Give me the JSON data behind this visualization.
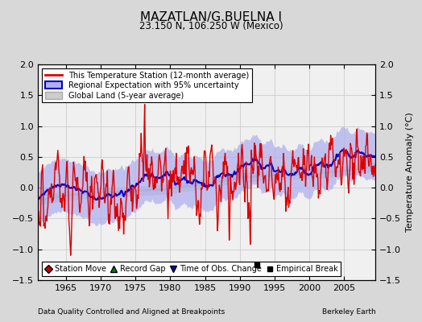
{
  "title": "MAZATLAN/G.BUELNA I",
  "subtitle": "23.150 N, 106.250 W (Mexico)",
  "xlabel_note": "Data Quality Controlled and Aligned at Breakpoints",
  "xlabel_right": "Berkeley Earth",
  "ylabel_right": "Temperature Anomaly (°C)",
  "xlim": [
    1961,
    2009.5
  ],
  "ylim": [
    -1.5,
    2.0
  ],
  "yticks": [
    -1.5,
    -1.0,
    -0.5,
    0.0,
    0.5,
    1.0,
    1.5,
    2.0
  ],
  "xticks": [
    1965,
    1970,
    1975,
    1980,
    1985,
    1990,
    1995,
    2000,
    2005
  ],
  "empirical_break_year": 1992.5,
  "empirical_break_val": -1.25,
  "background_color": "#d8d8d8",
  "plot_bg_color": "#f0f0f0",
  "station_line_color": "#dd0000",
  "regional_line_color": "#0000cc",
  "regional_fill_color": "#b0b0ee",
  "global_line_color": "#aaaaaa",
  "global_fill_color": "#cccccc",
  "legend_labels": [
    "This Temperature Station (12-month average)",
    "Regional Expectation with 95% uncertainty",
    "Global Land (5-year average)"
  ],
  "marker_legend": [
    {
      "label": "Station Move",
      "color": "#cc0000",
      "marker": "D"
    },
    {
      "label": "Record Gap",
      "color": "#008800",
      "marker": "^"
    },
    {
      "label": "Time of Obs. Change",
      "color": "#0000cc",
      "marker": "v"
    },
    {
      "label": "Empirical Break",
      "color": "#000000",
      "marker": "s"
    }
  ]
}
